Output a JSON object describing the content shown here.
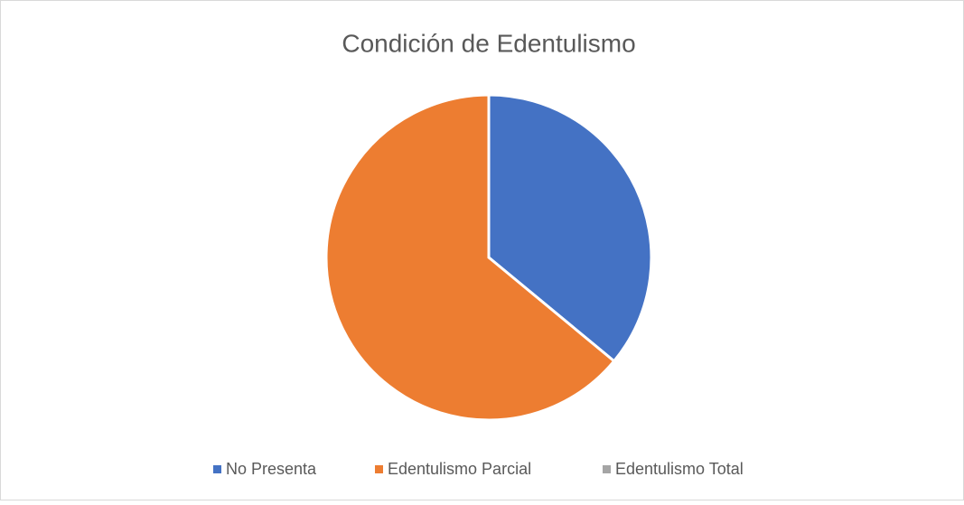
{
  "chart_data": {
    "type": "pie",
    "title": "Condición de Edentulismo",
    "categories": [
      "No Presenta",
      "Edentulismo Parcial",
      "Edentulismo Total"
    ],
    "values": [
      36,
      64,
      0
    ],
    "colors": [
      "#4472c4",
      "#ed7d31",
      "#a5a5a5"
    ],
    "legend": "bottom"
  }
}
